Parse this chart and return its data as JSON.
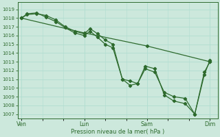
{
  "xlabel": "Pression niveau de la mer( hPa )",
  "bg_color": "#cce8dc",
  "grid_color": "#b0ddd0",
  "line_color": "#2d6a2d",
  "ylim": [
    1006.5,
    1019.8
  ],
  "yticks": [
    1007,
    1008,
    1009,
    1010,
    1011,
    1012,
    1013,
    1014,
    1015,
    1016,
    1017,
    1018,
    1019
  ],
  "day_labels": [
    "Ven",
    "Lun",
    "Sam",
    "Dim"
  ],
  "day_positions": [
    0,
    33,
    66,
    99
  ],
  "xlim": [
    -2,
    103
  ],
  "series1_x": [
    0,
    3,
    8,
    13,
    18,
    23,
    28,
    33,
    36,
    40,
    44,
    48,
    53,
    57,
    61,
    65,
    70,
    75,
    80,
    86,
    91,
    96,
    99
  ],
  "series1_y": [
    1018.0,
    1018.4,
    1018.5,
    1018.3,
    1017.8,
    1017.0,
    1016.5,
    1016.2,
    1016.8,
    1016.2,
    1015.5,
    1015.0,
    1011.0,
    1010.8,
    1010.5,
    1012.2,
    1011.8,
    1009.5,
    1009.0,
    1008.8,
    1007.0,
    1011.8,
    1013.0
  ],
  "series2_x": [
    0,
    3,
    8,
    13,
    18,
    23,
    28,
    33,
    36,
    40,
    44,
    48,
    53,
    57,
    61,
    65,
    70,
    75,
    80,
    86,
    91,
    96,
    99
  ],
  "series2_y": [
    1018.0,
    1018.5,
    1018.6,
    1018.1,
    1017.6,
    1016.9,
    1016.3,
    1016.0,
    1016.5,
    1015.8,
    1015.0,
    1014.6,
    1011.0,
    1010.3,
    1010.5,
    1012.5,
    1012.2,
    1009.2,
    1008.5,
    1008.2,
    1007.0,
    1011.5,
    1013.2
  ],
  "series3_x": [
    0,
    33,
    66,
    99
  ],
  "series3_y": [
    1018.0,
    1016.3,
    1014.8,
    1013.0
  ]
}
